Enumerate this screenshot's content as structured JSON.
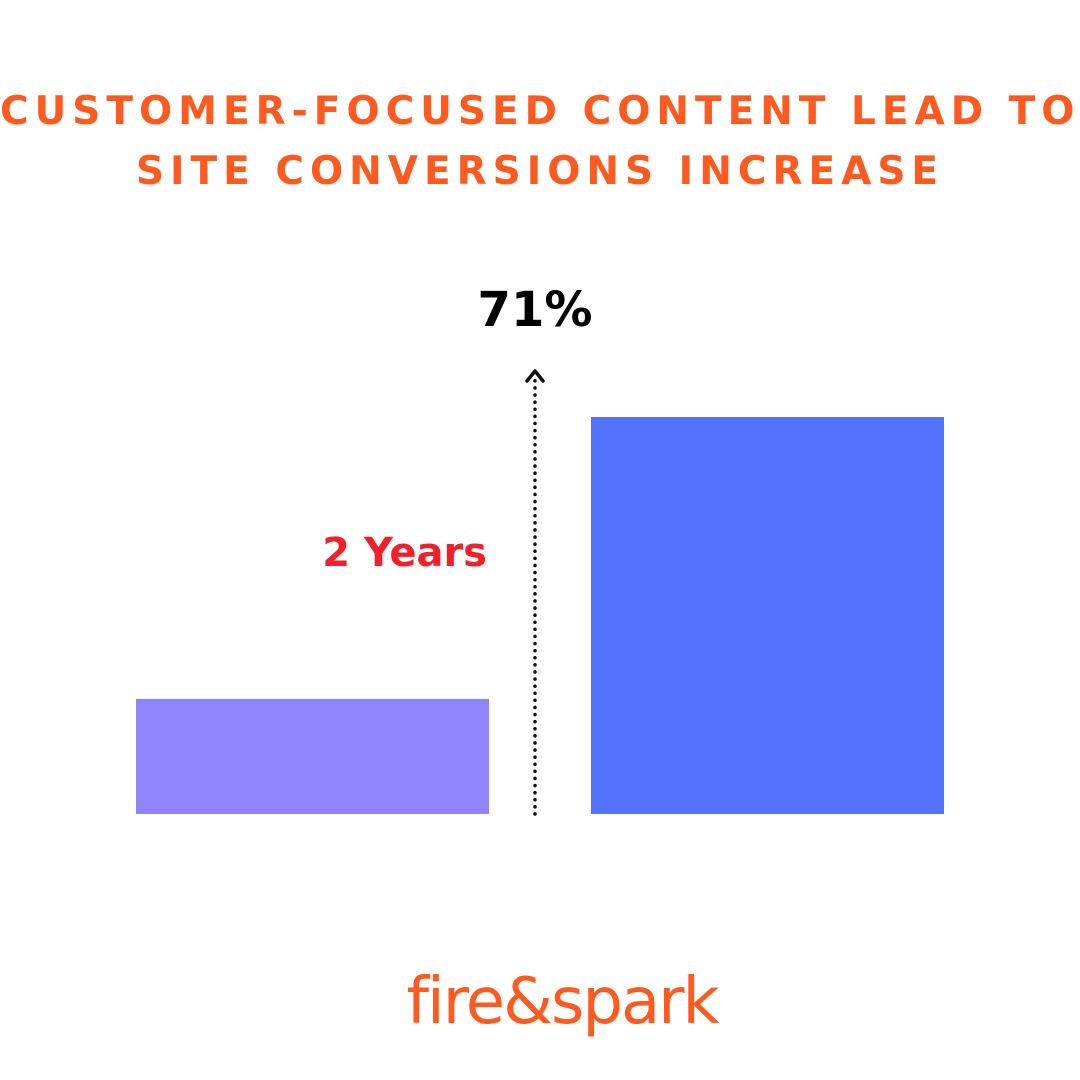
{
  "title_lines": [
    "CUSTOMER-FOCUSED CONTENT LEAD TO",
    "SITE CONVERSIONS INCREASE"
  ],
  "brand": {
    "logo_text": "fire&spark",
    "color": "#ff5a1f"
  },
  "chart_data": {
    "type": "bar",
    "categories": [
      "",
      ""
    ],
    "values": [
      29,
      100
    ],
    "colors": [
      "#9185fd",
      "#5372fe"
    ],
    "ylim": [
      0,
      100
    ],
    "grid": false,
    "annotations": {
      "increase_label": "71%",
      "increase_color": "#000000",
      "period_label": "2 Years",
      "period_color": "#f1212b",
      "arrow": "dotted-upward"
    }
  }
}
